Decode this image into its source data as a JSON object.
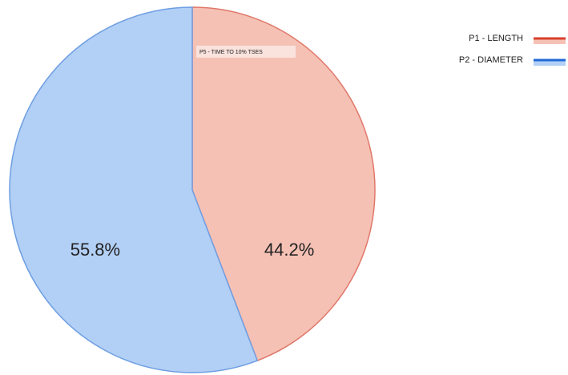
{
  "chart_data": {
    "type": "pie",
    "title": "P5 - TIME TO 10% TSES",
    "categories": [
      "P1 - LENGTH",
      "P2 - DIAMETER"
    ],
    "values": [
      44.2,
      55.8
    ],
    "value_labels": [
      "44.2%",
      "55.8%"
    ],
    "colors": [
      "#f5c1b5",
      "#b2cff5"
    ],
    "edge_colors": [
      "#e0786a",
      "#6e9ee2"
    ],
    "legend_colors": [
      "#d8402c",
      "#1f68d6"
    ],
    "legend": "top-right"
  }
}
